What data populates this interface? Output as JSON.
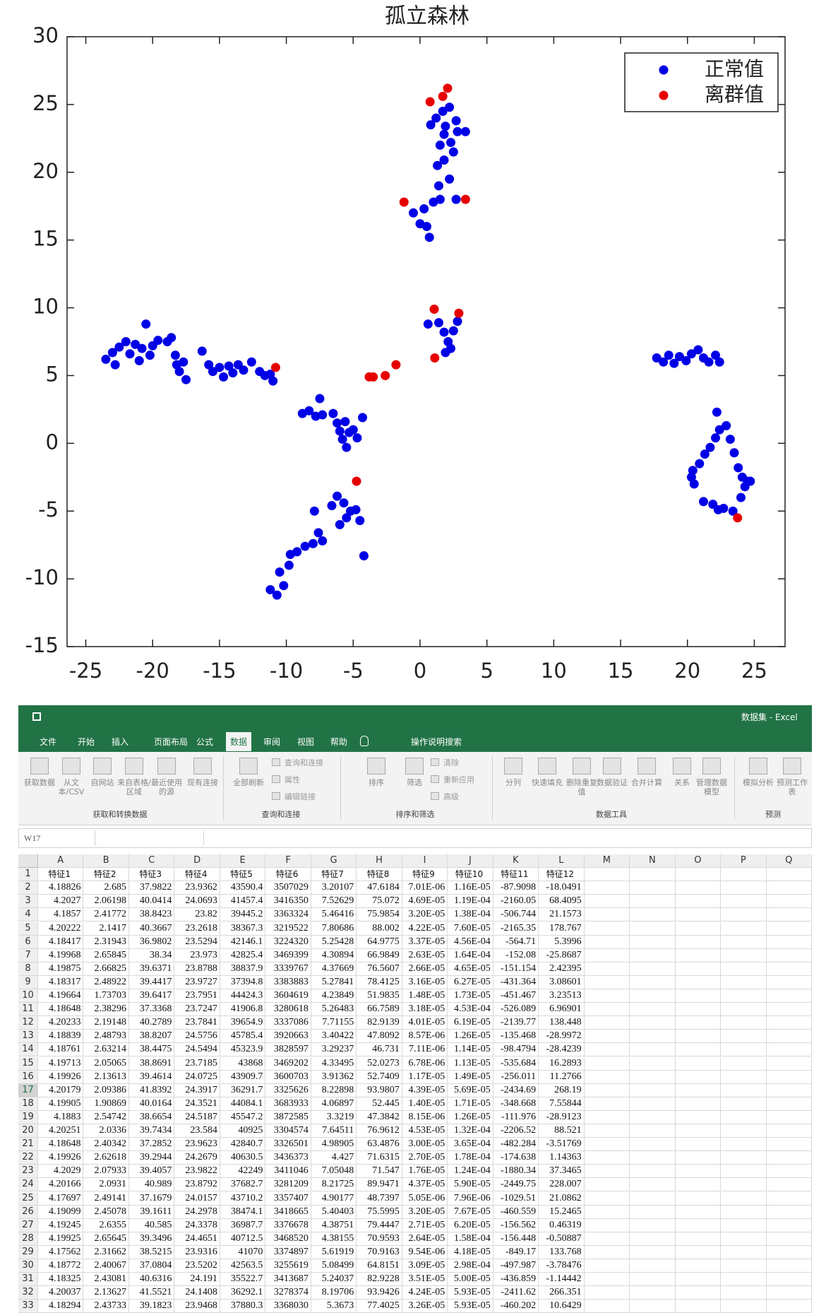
{
  "chart_data": {
    "type": "scatter",
    "title": "孤立森林",
    "legend": "upper right",
    "grid": false,
    "xlim": [
      -26.4,
      27.3
    ],
    "xticks": [
      -25,
      -20,
      -15,
      -10,
      -5,
      0,
      5,
      10,
      15,
      20,
      25
    ],
    "ylim": [
      -15,
      30
    ],
    "yticks": [
      -15,
      -10,
      -5,
      0,
      5,
      10,
      15,
      20,
      25,
      30
    ],
    "series": [
      {
        "name": "正常值",
        "color": "#0000e6",
        "x": [
          -23.5,
          -23,
          -22.8,
          -22.5,
          -22,
          -21.7,
          -21.3,
          -21,
          -20.8,
          -20.5,
          -20.2,
          -20,
          -19.6,
          -18.9,
          -18.6,
          -18.3,
          -18.2,
          -18,
          -17.7,
          -17.5,
          -16.3,
          -15.8,
          -15.5,
          -15,
          -14.7,
          -14.3,
          -14,
          -13.6,
          -13.2,
          -12.6,
          -12,
          -11.6,
          -11.2,
          -11,
          -8.8,
          -8.3,
          -7.8,
          -7.5,
          -7.3,
          -6.5,
          -6.2,
          -6,
          -5.8,
          -5.5,
          -5.3,
          -5,
          -4.7,
          -4.3,
          -5.6,
          -11.2,
          -10.7,
          -10.2,
          -10.5,
          -9.8,
          -9.7,
          -9.2,
          -8.6,
          -8,
          -7.6,
          -7.3,
          -7.9,
          -6.6,
          -6.2,
          -5.7,
          -5.5,
          -5.2,
          -4.8,
          -4.5,
          -4.2,
          -6,
          0.7,
          0.5,
          0,
          -0.5,
          0.3,
          1,
          1.5,
          1.4,
          1.3,
          1.8,
          2.2,
          2.7,
          1.5,
          1.8,
          2.3,
          2.8,
          3.4,
          1.2,
          1.7,
          2.2,
          2.7,
          0.8,
          1.9,
          2.5,
          0.6,
          1.4,
          1.8,
          2.1,
          2.5,
          2.8,
          2.3,
          1.9,
          17.7,
          18.2,
          18.6,
          19,
          19.4,
          19.9,
          20.3,
          20.8,
          21.2,
          21.6,
          22.1,
          22.4,
          20.3,
          20.4,
          20.9,
          21.3,
          21.7,
          22.1,
          22.4,
          22.2,
          22.9,
          23.2,
          23.5,
          23.8,
          24.1,
          24.3,
          24.5,
          24,
          23.4,
          22.7,
          22.3,
          21.9,
          21.2,
          20.5,
          24.7
        ],
        "y": [
          6.2,
          6.7,
          5.8,
          7.1,
          7.5,
          6.6,
          7.3,
          6.1,
          7,
          8.8,
          6.5,
          7.2,
          7.6,
          7.5,
          7.8,
          6.5,
          5.8,
          5.3,
          6,
          4.7,
          6.8,
          5.8,
          5.3,
          5.6,
          4.9,
          5.7,
          5.2,
          5.8,
          5.4,
          6,
          5.3,
          5,
          5.1,
          4.6,
          2.2,
          2.4,
          2,
          3.3,
          2.1,
          2.2,
          1.5,
          0.9,
          0.3,
          -0.3,
          0.8,
          1,
          0.4,
          1.9,
          1.6,
          -10.8,
          -11.2,
          -10.5,
          -9.5,
          -9,
          -8.2,
          -8,
          -7.6,
          -7.4,
          -6.6,
          -7.2,
          -5,
          -4.6,
          -3.9,
          -4.4,
          -5.5,
          -5,
          -4.9,
          -5.7,
          -8.3,
          -6,
          15.2,
          16,
          16.2,
          17,
          17.3,
          17.8,
          18,
          19,
          20.5,
          20.9,
          19.5,
          18,
          22,
          22.8,
          22.2,
          23,
          23,
          24,
          24.5,
          24.8,
          23.8,
          23.5,
          23.4,
          21.5,
          8.8,
          8.9,
          8.2,
          7.5,
          8.3,
          9,
          7,
          6.7,
          6.3,
          6,
          6.5,
          5.9,
          6.4,
          6.1,
          6.6,
          6.9,
          6.3,
          6,
          6.5,
          6,
          -2.5,
          -2,
          -1.5,
          -0.8,
          -0.3,
          0.4,
          1,
          2.3,
          1.3,
          0.3,
          -0.7,
          -1.8,
          -2.5,
          -3.2,
          -2.8,
          -4,
          -5,
          -4.8,
          -4.9,
          -4.5,
          -4.3,
          -3,
          -2.8
        ]
      },
      {
        "name": "离群值",
        "color": "#e60000",
        "x": [
          0.75,
          2.06,
          1.7,
          -1.2,
          3.4,
          1.06,
          2.9,
          1.1,
          -1.8,
          -2.6,
          -3.8,
          -3.5,
          -10.8,
          -4.75,
          23.75
        ],
        "y": [
          25.2,
          26.2,
          25.6,
          17.8,
          18,
          9.9,
          9.6,
          6.3,
          5.8,
          5,
          4.9,
          4.9,
          5.6,
          -2.8,
          -5.5
        ]
      }
    ]
  },
  "excel": {
    "app_title": "数据集 - Excel",
    "tabs": [
      "文件",
      "开始",
      "插入",
      "页面布局",
      "公式",
      "数据",
      "审阅",
      "视图",
      "帮助",
      "操作说明搜索"
    ],
    "ribbon": {
      "buttons": [
        "获取数据",
        "从文本/CSV",
        "自网站",
        "来自表格/区域",
        "最近使用的源",
        "现有连接",
        "全部刷新",
        "排序",
        "筛选",
        "分列",
        "快速填充",
        "删除重复值",
        "数据验证",
        "合并计算",
        "关系",
        "管理数据模型",
        "模拟分析",
        "预测工作表"
      ],
      "small": [
        "查询和连接",
        "属性",
        "编辑链接",
        "清除",
        "重新应用",
        "高级"
      ],
      "groups": [
        "获取和转换数据",
        "查询和连接",
        "排序和筛选",
        "数据工具",
        "预测"
      ]
    },
    "name_box": "W17",
    "columns": [
      "A",
      "B",
      "C",
      "D",
      "E",
      "F",
      "G",
      "H",
      "I",
      "J",
      "K",
      "L",
      "M",
      "N",
      "O",
      "P",
      "Q"
    ],
    "row_numbers": [
      1,
      2,
      3,
      4,
      5,
      6,
      7,
      8,
      9,
      10,
      11,
      12,
      13,
      14,
      15,
      16,
      17,
      18,
      19,
      20,
      21,
      22,
      23,
      24,
      25,
      26,
      27,
      28,
      29,
      30,
      31,
      32,
      33
    ],
    "table": {
      "header": [
        "特征1",
        "特征2",
        "特征3",
        "特征4",
        "特征5",
        "特征6",
        "特征7",
        "特征8",
        "特征9",
        "特征10",
        "特征11",
        "特征12"
      ],
      "rows": [
        [
          "4.18826",
          "2.685",
          "37.9822",
          "23.9362",
          "43590.4",
          "3507029",
          "3.20107",
          "47.6184",
          "7.01E-06",
          "1.16E-05",
          "-87.9098",
          "-18.0491"
        ],
        [
          "4.2027",
          "2.06198",
          "40.0414",
          "24.0693",
          "41457.4",
          "3416350",
          "7.52629",
          "75.072",
          "4.69E-05",
          "1.19E-04",
          "-2160.05",
          "68.4095"
        ],
        [
          "4.1857",
          "2.41772",
          "38.8423",
          "23.82",
          "39445.2",
          "3363324",
          "5.46416",
          "75.9854",
          "3.20E-05",
          "1.38E-04",
          "-506.744",
          "21.1573"
        ],
        [
          "4.20222",
          "2.1417",
          "40.3667",
          "23.2618",
          "38367.3",
          "3219522",
          "7.80686",
          "88.002",
          "4.22E-05",
          "7.60E-05",
          "-2165.35",
          "178.767"
        ],
        [
          "4.18417",
          "2.31943",
          "36.9802",
          "23.5294",
          "42146.1",
          "3224320",
          "5.25428",
          "64.9775",
          "3.37E-05",
          "4.56E-04",
          "-564.71",
          "5.3996"
        ],
        [
          "4.19968",
          "2.65845",
          "38.34",
          "23.973",
          "42825.4",
          "3469399",
          "4.30894",
          "66.9849",
          "2.63E-05",
          "1.64E-04",
          "-152.08",
          "-25.8687"
        ],
        [
          "4.19875",
          "2.66825",
          "39.6371",
          "23.8788",
          "38837.9",
          "3339767",
          "4.37669",
          "76.5607",
          "2.66E-05",
          "4.65E-05",
          "-151.154",
          "2.42395"
        ],
        [
          "4.18317",
          "2.48922",
          "39.4417",
          "23.9727",
          "37394.8",
          "3383883",
          "5.27841",
          "78.4125",
          "3.16E-05",
          "6.27E-05",
          "-431.364",
          "3.08601"
        ],
        [
          "4.19664",
          "1.73703",
          "39.6417",
          "23.7951",
          "44424.3",
          "3604619",
          "4.23849",
          "51.9835",
          "1.48E-05",
          "1.73E-05",
          "-451.467",
          "3.23513"
        ],
        [
          "4.18648",
          "2.38296",
          "37.3368",
          "23.7247",
          "41906.8",
          "3280618",
          "5.26483",
          "66.7589",
          "3.18E-05",
          "4.53E-04",
          "-526.089",
          "6.96901"
        ],
        [
          "4.20233",
          "2.19148",
          "40.2789",
          "23.7841",
          "39654.9",
          "3337086",
          "7.71155",
          "82.9139",
          "4.01E-05",
          "6.19E-05",
          "-2139.77",
          "138.448"
        ],
        [
          "4.18839",
          "2.48793",
          "38.8207",
          "24.5756",
          "45785.4",
          "3920663",
          "3.40422",
          "47.8092",
          "8.57E-06",
          "1.26E-05",
          "-135.468",
          "-28.9972"
        ],
        [
          "4.18761",
          "2.63214",
          "38.4475",
          "24.5494",
          "45323.9",
          "3828597",
          "3.29237",
          "46.731",
          "7.11E-06",
          "1.14E-05",
          "-98.4794",
          "-28.4239"
        ],
        [
          "4.19713",
          "2.05065",
          "38.8691",
          "23.7185",
          "43868",
          "3469202",
          "4.33495",
          "52.0273",
          "6.78E-06",
          "1.13E-05",
          "-535.684",
          "16.2893"
        ],
        [
          "4.19926",
          "2.13613",
          "39.4614",
          "24.0725",
          "43909.7",
          "3600703",
          "3.91362",
          "52.7409",
          "1.17E-05",
          "1.49E-05",
          "-256.011",
          "11.2766"
        ],
        [
          "4.20179",
          "2.09386",
          "41.8392",
          "24.3917",
          "36291.7",
          "3325626",
          "8.22898",
          "93.9807",
          "4.39E-05",
          "5.69E-05",
          "-2434.69",
          "268.19"
        ],
        [
          "4.19905",
          "1.90869",
          "40.0164",
          "24.3521",
          "44084.1",
          "3683933",
          "4.06897",
          "52.445",
          "1.40E-05",
          "1.71E-05",
          "-348.668",
          "7.55844"
        ],
        [
          "4.1883",
          "2.54742",
          "38.6654",
          "24.5187",
          "45547.2",
          "3872585",
          "3.3219",
          "47.3842",
          "8.15E-06",
          "1.26E-05",
          "-111.976",
          "-28.9123"
        ],
        [
          "4.20251",
          "2.0336",
          "39.7434",
          "23.584",
          "40925",
          "3304574",
          "7.64511",
          "76.9612",
          "4.53E-05",
          "1.32E-04",
          "-2206.52",
          "88.521"
        ],
        [
          "4.18648",
          "2.40342",
          "37.2852",
          "23.9623",
          "42840.7",
          "3326501",
          "4.98905",
          "63.4876",
          "3.00E-05",
          "3.65E-04",
          "-482.284",
          "-3.51769"
        ],
        [
          "4.19926",
          "2.62618",
          "39.2944",
          "24.2679",
          "40630.5",
          "3436373",
          "4.427",
          "71.6315",
          "2.70E-05",
          "1.78E-04",
          "-174.638",
          "1.14363"
        ],
        [
          "4.2029",
          "2.07933",
          "39.4057",
          "23.9822",
          "42249",
          "3411046",
          "7.05048",
          "71.547",
          "1.76E-05",
          "1.24E-04",
          "-1880.34",
          "37.3465"
        ],
        [
          "4.20166",
          "2.0931",
          "40.989",
          "23.8792",
          "37682.7",
          "3281209",
          "8.21725",
          "89.9471",
          "4.37E-05",
          "5.90E-05",
          "-2449.75",
          "228.007"
        ],
        [
          "4.17697",
          "2.49141",
          "37.1679",
          "24.0157",
          "43710.2",
          "3357407",
          "4.90177",
          "48.7397",
          "5.05E-06",
          "7.96E-06",
          "-1029.51",
          "21.0862"
        ],
        [
          "4.19099",
          "2.45078",
          "39.1611",
          "24.2978",
          "38474.1",
          "3418665",
          "5.40403",
          "75.5995",
          "3.20E-05",
          "7.67E-05",
          "-460.559",
          "15.2465"
        ],
        [
          "4.19245",
          "2.6355",
          "40.585",
          "24.3378",
          "36987.7",
          "3376678",
          "4.38751",
          "79.4447",
          "2.71E-05",
          "6.20E-05",
          "-156.562",
          "0.46319"
        ],
        [
          "4.19925",
          "2.65645",
          "39.3496",
          "24.4651",
          "40712.5",
          "3468520",
          "4.38155",
          "70.9593",
          "2.64E-05",
          "1.58E-04",
          "-156.448",
          "-0.50887"
        ],
        [
          "4.17562",
          "2.31662",
          "38.5215",
          "23.9316",
          "41070",
          "3374897",
          "5.61919",
          "70.9163",
          "9.54E-06",
          "4.18E-05",
          "-849.17",
          "133.768"
        ],
        [
          "4.18772",
          "2.40067",
          "37.0804",
          "23.5202",
          "42563.5",
          "3255619",
          "5.08499",
          "64.8151",
          "3.09E-05",
          "2.98E-04",
          "-497.987",
          "-3.78476"
        ],
        [
          "4.18325",
          "2.43081",
          "40.6316",
          "24.191",
          "35522.7",
          "3413687",
          "5.24037",
          "82.9228",
          "3.51E-05",
          "5.00E-05",
          "-436.859",
          "-1.14442"
        ],
        [
          "4.20037",
          "2.13627",
          "41.5521",
          "24.1408",
          "36292.1",
          "3278374",
          "8.19706",
          "93.9426",
          "4.24E-05",
          "5.93E-05",
          "-2411.62",
          "266.351"
        ],
        [
          "4.18294",
          "2.43733",
          "39.1823",
          "23.9468",
          "37880.3",
          "3368030",
          "5.3673",
          "77.4025",
          "3.26E-05",
          "5.93E-05",
          "-460.202",
          "10.6429"
        ]
      ]
    }
  }
}
